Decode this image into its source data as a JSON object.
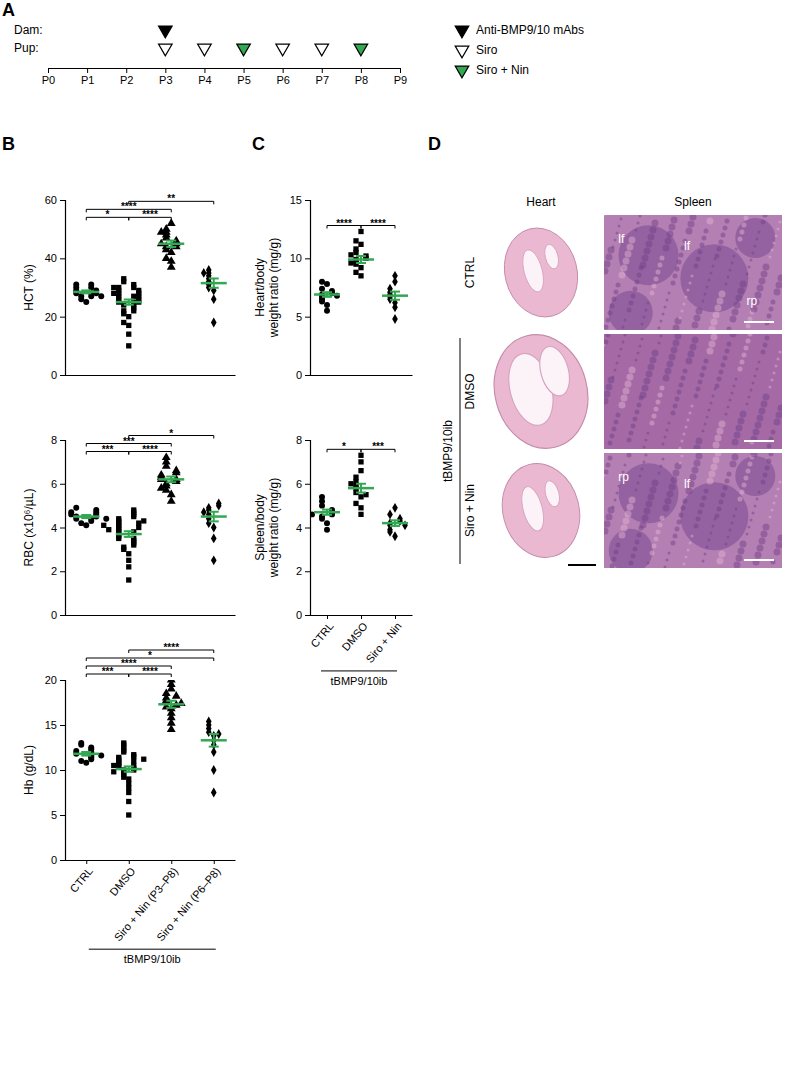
{
  "panel_labels": [
    "A",
    "B",
    "C",
    "D"
  ],
  "timeline": {
    "rows": [
      "Dam:",
      "Pup:"
    ],
    "days": [
      "P0",
      "P1",
      "P2",
      "P3",
      "P4",
      "P5",
      "P6",
      "P7",
      "P8",
      "P9"
    ],
    "legend": [
      {
        "label": "Anti-BMP9/10 mAbs",
        "marker": "triangle-filled",
        "color": "#000000"
      },
      {
        "label": "Siro",
        "marker": "triangle-open",
        "color": "#000000"
      },
      {
        "label": "Siro + Nin",
        "marker": "triangle-filled",
        "color": "#33a852"
      }
    ],
    "events": [
      {
        "row": 0,
        "day": 3,
        "kind": 0
      },
      {
        "row": 1,
        "day": 3,
        "kind": 1
      },
      {
        "row": 1,
        "day": 4,
        "kind": 1
      },
      {
        "row": 1,
        "day": 5,
        "kind": 2
      },
      {
        "row": 1,
        "day": 6,
        "kind": 1
      },
      {
        "row": 1,
        "day": 7,
        "kind": 1
      },
      {
        "row": 1,
        "day": 8,
        "kind": 2
      }
    ]
  },
  "chart_data": [
    {
      "type": "dot",
      "y_label": [
        "HCT (%)"
      ],
      "categories": [
        "CTRL",
        "DMSO",
        "Siro + Nin (P3–P8)",
        "Siro + Nin (P6–P8)"
      ],
      "marker": [
        "circle",
        "square",
        "triangle",
        "diamond"
      ],
      "color": "#000000",
      "values": [
        [
          25,
          26,
          27,
          27,
          28,
          28,
          28,
          29,
          29,
          30,
          30,
          31,
          27,
          31
        ],
        [
          10,
          14,
          17,
          18,
          20,
          21,
          22,
          22,
          23,
          24,
          24,
          25,
          25,
          25,
          26,
          26,
          27,
          27,
          27,
          28,
          28,
          28,
          29,
          29,
          30,
          30,
          31,
          32,
          33,
          30
        ],
        [
          37,
          39,
          40,
          42,
          43,
          44,
          44,
          45,
          45,
          46,
          47,
          48,
          49,
          50,
          52,
          49
        ],
        [
          18,
          26,
          29,
          30,
          31,
          32,
          33,
          34,
          35,
          36,
          35
        ]
      ],
      "means": [
        28.5,
        25.0,
        45.0,
        31.5
      ],
      "errors": [
        0.5,
        0.9,
        1.1,
        1.6
      ],
      "ylim": [
        0,
        60
      ],
      "yticks": [
        0,
        20,
        40,
        60
      ],
      "tick_labels": "y",
      "comparisons": [
        {
          "groups": [
            0,
            1
          ],
          "label": "*"
        },
        {
          "groups": [
            1,
            2
          ],
          "label": "****"
        },
        {
          "groups": [
            0,
            2
          ],
          "label": "****"
        },
        {
          "groups": [
            1,
            3
          ],
          "label": "**"
        }
      ]
    },
    {
      "type": "dot",
      "y_label": [
        "RBC (x10⁶/µL)"
      ],
      "categories": [
        "CTRL",
        "DMSO",
        "Siro + Nin (P3–P8)",
        "Siro + Nin (P6–P8)"
      ],
      "marker": [
        "circle",
        "square",
        "triangle",
        "diamond"
      ],
      "color": "#000000",
      "values": [
        [
          4.1,
          4.2,
          4.3,
          4.4,
          4.4,
          4.5,
          4.5,
          4.6,
          4.6,
          4.7,
          4.7,
          4.8,
          4.9,
          4.4
        ],
        [
          1.6,
          2.2,
          2.5,
          2.8,
          3.0,
          3.1,
          3.2,
          3.3,
          3.4,
          3.5,
          3.5,
          3.6,
          3.7,
          3.8,
          3.8,
          3.9,
          4.0,
          4.0,
          4.1,
          4.2,
          4.2,
          4.3,
          4.4,
          4.5,
          4.6,
          4.7,
          4.8,
          4.3,
          3.9,
          4.1
        ],
        [
          5.2,
          5.5,
          5.7,
          5.9,
          6.0,
          6.1,
          6.2,
          6.2,
          6.3,
          6.4,
          6.5,
          6.6,
          6.8,
          7.0,
          7.2,
          5.8
        ],
        [
          2.5,
          3.5,
          4.0,
          4.2,
          4.4,
          4.6,
          4.8,
          4.9,
          5.0,
          5.1,
          4.7
        ]
      ],
      "means": [
        4.5,
        3.7,
        6.2,
        4.5
      ],
      "errors": [
        0.07,
        0.13,
        0.13,
        0.22
      ],
      "ylim": [
        0,
        8
      ],
      "yticks": [
        0,
        2,
        4,
        6,
        8
      ],
      "tick_labels": "y",
      "comparisons": [
        {
          "groups": [
            0,
            1
          ],
          "label": "***"
        },
        {
          "groups": [
            1,
            2
          ],
          "label": "****"
        },
        {
          "groups": [
            0,
            2
          ],
          "label": "***"
        },
        {
          "groups": [
            1,
            3
          ],
          "label": "*"
        }
      ]
    },
    {
      "type": "dot",
      "y_label": [
        "Hb (g/dL)"
      ],
      "categories": [
        "CTRL",
        "DMSO",
        "Siro + Nin (P3–P8)",
        "Siro + Nin (P6–P8)"
      ],
      "marker": [
        "circle",
        "square",
        "triangle",
        "diamond"
      ],
      "color": "#000000",
      "values": [
        [
          10.8,
          11,
          11.2,
          11.4,
          11.5,
          11.7,
          11.8,
          12,
          12.1,
          12.3,
          12.5,
          12.8,
          13,
          11.6
        ],
        [
          5,
          6.5,
          7.5,
          8,
          8.5,
          9,
          9.2,
          9.5,
          9.7,
          10,
          10,
          10.2,
          10.4,
          10.5,
          10.6,
          10.8,
          11,
          11,
          11.2,
          11.4,
          11.5,
          11.7,
          12,
          12.2,
          12.5,
          12.8,
          13,
          10.5,
          9.8,
          11.2
        ],
        [
          14.5,
          15.2,
          15.8,
          16.3,
          16.8,
          17,
          17.2,
          17.5,
          17.7,
          18,
          18.2,
          18.5,
          19,
          19.5,
          20,
          17.4
        ],
        [
          7.5,
          10,
          12,
          12.8,
          13.3,
          13.8,
          14.2,
          14.6,
          15,
          15.4,
          14
        ]
      ],
      "means": [
        11.8,
        10.1,
        17.3,
        13.3
      ],
      "errors": [
        0.2,
        0.3,
        0.4,
        0.7
      ],
      "ylim": [
        0,
        20
      ],
      "yticks": [
        0,
        5,
        10,
        15,
        20
      ],
      "comparisons": [
        {
          "groups": [
            0,
            1
          ],
          "label": "***"
        },
        {
          "groups": [
            1,
            2
          ],
          "label": "****"
        },
        {
          "groups": [
            0,
            2
          ],
          "label": "****"
        },
        {
          "groups": [
            0,
            3
          ],
          "label": "*"
        },
        {
          "groups": [
            1,
            3
          ],
          "label": "****"
        }
      ],
      "group_label": {
        "text": "tBMP9/10ib",
        "from": 1,
        "to": 3
      }
    },
    {
      "type": "dot",
      "y_label": [
        "Heart/body",
        "weight ratio (mg/g)"
      ],
      "categories": [
        "CTRL",
        "DMSO",
        "Siro + Nin"
      ],
      "marker": [
        "circle",
        "square",
        "diamond"
      ],
      "color": "#000000",
      "values": [
        [
          5.5,
          6,
          6.3,
          6.5,
          6.7,
          6.9,
          7,
          7.2,
          7.4,
          7.8,
          8,
          6.8
        ],
        [
          8.5,
          8.8,
          9.2,
          9.5,
          9.7,
          9.9,
          10,
          10.2,
          10.5,
          10.8,
          11.2,
          11.5,
          12.3,
          9.6,
          10.3
        ],
        [
          4.8,
          5.8,
          6.2,
          6.5,
          6.7,
          6.9,
          7.1,
          7.4,
          8,
          8.5
        ]
      ],
      "means": [
        6.9,
        9.9,
        6.8
      ],
      "errors": [
        0.2,
        0.3,
        0.35
      ],
      "ylim": [
        0,
        15
      ],
      "yticks": [
        0,
        5,
        10,
        15
      ],
      "tick_labels": "y",
      "comparisons": [
        {
          "groups": [
            0,
            1
          ],
          "label": "****"
        },
        {
          "groups": [
            1,
            2
          ],
          "label": "****"
        }
      ]
    },
    {
      "type": "dot",
      "y_label": [
        "Spleen/body",
        "weight ratio (mg/g)"
      ],
      "categories": [
        "CTRL",
        "DMSO",
        "Siro + Nin"
      ],
      "marker": [
        "circle",
        "square",
        "diamond"
      ],
      "color": "#000000",
      "values": [
        [
          3.9,
          4.2,
          4.4,
          4.5,
          4.6,
          4.7,
          4.8,
          5,
          5.2,
          5.4,
          4.6
        ],
        [
          4.6,
          4.9,
          5.1,
          5.4,
          5.6,
          5.8,
          5.9,
          6.1,
          6.3,
          6.6,
          7,
          7.3,
          5.5,
          6
        ],
        [
          3.6,
          3.8,
          3.9,
          4.1,
          4.2,
          4.3,
          4.4,
          4.6,
          4.9,
          4.1
        ]
      ],
      "means": [
        4.7,
        5.8,
        4.2
      ],
      "errors": [
        0.12,
        0.2,
        0.13
      ],
      "ylim": [
        0,
        8
      ],
      "yticks": [
        0,
        2,
        4,
        6,
        8
      ],
      "comparisons": [
        {
          "groups": [
            0,
            1
          ],
          "label": "*"
        },
        {
          "groups": [
            1,
            2
          ],
          "label": "***"
        }
      ],
      "group_label": {
        "text": "tBMP9/10ib",
        "from": 1,
        "to": 2
      }
    }
  ],
  "histology": {
    "columns": [
      "Heart",
      "Spleen"
    ],
    "rows": [
      "CTRL",
      "DMSO",
      "Siro + Nin"
    ],
    "group_label": "tBMP9/10ib",
    "group_rows": [
      1,
      2
    ],
    "spleen_labels": [
      [
        "lf",
        "lf",
        "rp"
      ],
      [],
      [
        "rp",
        "lf"
      ]
    ]
  }
}
